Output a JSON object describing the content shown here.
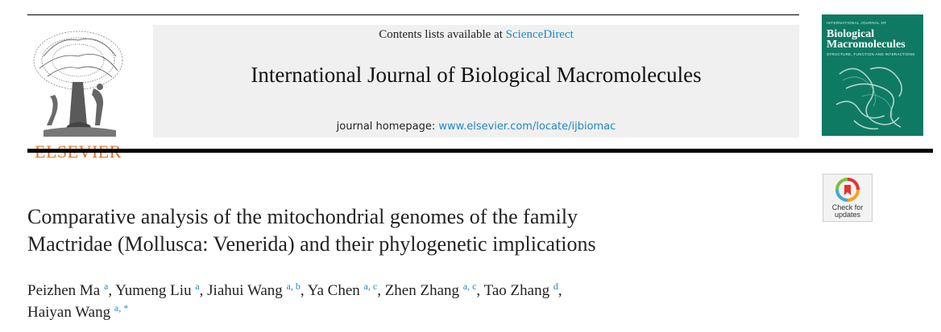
{
  "publisher": {
    "name": "ELSEVIER"
  },
  "masthead": {
    "contents_prefix": "Contents lists available at ",
    "contents_link": "ScienceDirect",
    "journal_title": "International Journal of Biological Macromolecules",
    "homepage_prefix": "journal homepage: ",
    "homepage_url": "www.elsevier.com/locate/ijbiomac"
  },
  "cover": {
    "top_text": "INTERNATIONAL JOURNAL OF",
    "title_line1": "Biological",
    "title_line2": "Macromolecules",
    "subtitle": "STRUCTURE, FUNCTION AND INTERACTIONS"
  },
  "crossmark": {
    "line1": "Check for",
    "line2": "updates"
  },
  "article": {
    "title_line1": "Comparative analysis of the mitochondrial genomes of the family",
    "title_line2": "Mactridae (Mollusca: Venerida) and their phylogenetic implications"
  },
  "authors": [
    {
      "name": "Peizhen Ma",
      "aff": "a",
      "sep": ", "
    },
    {
      "name": "Yumeng Liu",
      "aff": "a",
      "sep": ", "
    },
    {
      "name": "Jiahui Wang",
      "aff": "a, b",
      "sep": ", "
    },
    {
      "name": "Ya Chen",
      "aff": "a, c",
      "sep": ", "
    },
    {
      "name": "Zhen Zhang",
      "aff": "a, c",
      "sep": ", "
    },
    {
      "name": "Tao Zhang",
      "aff": "d",
      "sep": ","
    },
    {
      "name": "Haiyan Wang",
      "aff": "a, *",
      "sep": ""
    }
  ]
}
